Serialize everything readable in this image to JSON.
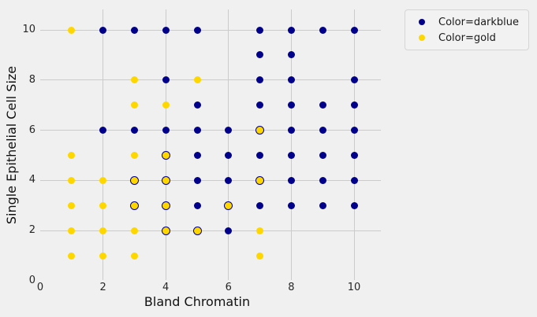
{
  "colors": {
    "background": "#f0f0f0",
    "grid": "#cbcbcb",
    "tick_text": "#262626",
    "legend_bg": "#f2f2f2",
    "legend_border": "#d5d5d5",
    "darkblue": "#00008b",
    "gold": "#ffd700"
  },
  "chart_data": {
    "type": "scatter",
    "title": "",
    "xlabel": "Bland Chromatin",
    "ylabel": "Single Epithelial Cell Size",
    "xlim": [
      0,
      10.8
    ],
    "ylim": [
      0,
      10.8
    ],
    "xticks": [
      "0",
      "2",
      "4",
      "6",
      "8",
      "10"
    ],
    "yticks": [
      "0",
      "2",
      "4",
      "6",
      "8",
      "10"
    ],
    "grid": true,
    "legend": {
      "position": "outside-upper-right",
      "entries": [
        {
          "label": "Color=darkblue",
          "color": "#00008b"
        },
        {
          "label": "Color=gold",
          "color": "#ffd700"
        }
      ]
    },
    "series": [
      {
        "name": "darkblue",
        "color": "#00008b",
        "points": [
          [
            2,
            10
          ],
          [
            3,
            10
          ],
          [
            4,
            10
          ],
          [
            5,
            10
          ],
          [
            7,
            10
          ],
          [
            8,
            10
          ],
          [
            9,
            10
          ],
          [
            10,
            10
          ],
          [
            7,
            9
          ],
          [
            8,
            9
          ],
          [
            4,
            8
          ],
          [
            7,
            8
          ],
          [
            8,
            8
          ],
          [
            10,
            8
          ],
          [
            5,
            7
          ],
          [
            7,
            7
          ],
          [
            8,
            7
          ],
          [
            9,
            7
          ],
          [
            10,
            7
          ],
          [
            2,
            6
          ],
          [
            3,
            6
          ],
          [
            4,
            6
          ],
          [
            5,
            6
          ],
          [
            6,
            6
          ],
          [
            7,
            6
          ],
          [
            8,
            6
          ],
          [
            9,
            6
          ],
          [
            10,
            6
          ],
          [
            4,
            5
          ],
          [
            5,
            5
          ],
          [
            6,
            5
          ],
          [
            7,
            5
          ],
          [
            8,
            5
          ],
          [
            9,
            5
          ],
          [
            10,
            5
          ],
          [
            3,
            4
          ],
          [
            4,
            4
          ],
          [
            5,
            4
          ],
          [
            6,
            4
          ],
          [
            7,
            4
          ],
          [
            8,
            4
          ],
          [
            9,
            4
          ],
          [
            10,
            4
          ],
          [
            3,
            3
          ],
          [
            4,
            3
          ],
          [
            5,
            3
          ],
          [
            6,
            3
          ],
          [
            7,
            3
          ],
          [
            8,
            3
          ],
          [
            9,
            3
          ],
          [
            10,
            3
          ],
          [
            4,
            2
          ],
          [
            5,
            2
          ],
          [
            6,
            2
          ]
        ]
      },
      {
        "name": "gold",
        "color": "#ffd700",
        "points": [
          [
            1,
            10
          ],
          [
            3,
            8
          ],
          [
            5,
            8
          ],
          [
            3,
            7
          ],
          [
            4,
            7
          ],
          [
            7,
            6
          ],
          [
            1,
            5
          ],
          [
            3,
            5
          ],
          [
            4,
            5
          ],
          [
            1,
            4
          ],
          [
            2,
            4
          ],
          [
            3,
            4
          ],
          [
            4,
            4
          ],
          [
            7,
            4
          ],
          [
            1,
            3
          ],
          [
            2,
            3
          ],
          [
            3,
            3
          ],
          [
            4,
            3
          ],
          [
            6,
            3
          ],
          [
            1,
            2
          ],
          [
            2,
            2
          ],
          [
            3,
            2
          ],
          [
            4,
            2
          ],
          [
            5,
            2
          ],
          [
            7,
            2
          ],
          [
            1,
            1
          ],
          [
            2,
            1
          ],
          [
            3,
            1
          ],
          [
            7,
            1
          ]
        ],
        "drawn_over_darkblue": [
          [
            7,
            6
          ],
          [
            4,
            5
          ],
          [
            3,
            4
          ],
          [
            4,
            4
          ],
          [
            7,
            4
          ],
          [
            3,
            3
          ],
          [
            4,
            3
          ],
          [
            6,
            3
          ],
          [
            4,
            2
          ],
          [
            5,
            2
          ]
        ]
      }
    ]
  }
}
